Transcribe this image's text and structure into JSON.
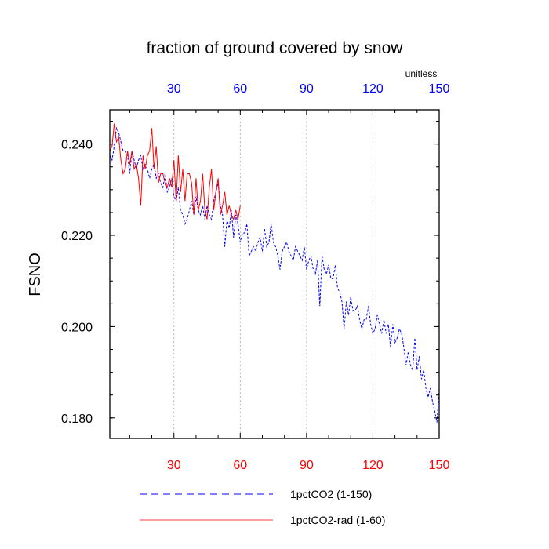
{
  "chart_data": {
    "type": "line",
    "title": "fraction of ground covered by snow",
    "ylabel": "FSNO",
    "units_label": "unitless",
    "xlim": [
      1,
      150
    ],
    "ylim": [
      0.1755,
      0.2475
    ],
    "x_ticks": [
      30,
      60,
      90,
      120,
      150
    ],
    "y_ticks": [
      0.18,
      0.2,
      0.22,
      0.24
    ],
    "y_tick_labels": [
      "0.180",
      "0.200",
      "0.220",
      "0.240"
    ],
    "x_tick_labels": [
      "30",
      "60",
      "90",
      "120",
      "150"
    ],
    "top_axis_color": "#0000ff",
    "bottom_axis_color": "#ff0000",
    "grid": "vertical dashed at x ticks",
    "series": [
      {
        "name": "1pctCO2 (1-150)",
        "color": "#0000ff",
        "style": "dashed",
        "x_start": 1,
        "values": [
          0.2375,
          0.2365,
          0.2395,
          0.2435,
          0.2425,
          0.2405,
          0.2385,
          0.2385,
          0.2375,
          0.2335,
          0.2385,
          0.2365,
          0.2345,
          0.2365,
          0.2375,
          0.2345,
          0.2355,
          0.2345,
          0.2325,
          0.2345,
          0.2355,
          0.2325,
          0.2335,
          0.2315,
          0.2305,
          0.2335,
          0.2295,
          0.2305,
          0.2325,
          0.2285,
          0.2275,
          0.2305,
          0.2255,
          0.2245,
          0.2225,
          0.2235,
          0.2255,
          0.2275,
          0.2245,
          0.2285,
          0.2255,
          0.2245,
          0.2265,
          0.2235,
          0.2265,
          0.2245,
          0.2235,
          0.2275,
          0.2295,
          0.2315,
          0.2265,
          0.2245,
          0.2175,
          0.2235,
          0.2215,
          0.2255,
          0.2195,
          0.2245,
          0.2225,
          0.2185,
          0.2205,
          0.2205,
          0.2225,
          0.2155,
          0.2165,
          0.2175,
          0.2165,
          0.2185,
          0.2195,
          0.2165,
          0.2215,
          0.2175,
          0.2185,
          0.2225,
          0.2185,
          0.2175,
          0.2155,
          0.2125,
          0.2165,
          0.2175,
          0.2185,
          0.2165,
          0.2155,
          0.2145,
          0.2175,
          0.2165,
          0.2155,
          0.2145,
          0.2175,
          0.2125,
          0.2145,
          0.2155,
          0.2125,
          0.2115,
          0.2145,
          0.2045,
          0.2155,
          0.2125,
          0.2115,
          0.2135,
          0.2105,
          0.2105,
          0.2135,
          0.2085,
          0.2075,
          0.2055,
          0.1995,
          0.2055,
          0.2025,
          0.2065,
          0.2035,
          0.2035,
          0.2045,
          0.2015,
          0.1995,
          0.2015,
          0.2015,
          0.2045,
          0.2005,
          0.1985,
          0.1995,
          0.2025,
          0.2005,
          0.1985,
          0.2015,
          0.1985,
          0.2005,
          0.1955,
          0.2005,
          0.1965,
          0.1975,
          0.1995,
          0.1985,
          0.1955,
          0.1915,
          0.1945,
          0.1915,
          0.1905,
          0.1975,
          0.1905,
          0.1935,
          0.1885,
          0.1905,
          0.1865,
          0.1845,
          0.1865,
          0.1835,
          0.1815,
          0.179,
          0.1865
        ]
      },
      {
        "name": "1pctCO2-rad (1-60)",
        "color": "#ff0000",
        "style": "solid",
        "x_start": 1,
        "values": [
          0.2385,
          0.2395,
          0.2445,
          0.2405,
          0.2415,
          0.2365,
          0.2335,
          0.2345,
          0.2385,
          0.2355,
          0.2385,
          0.2345,
          0.2355,
          0.2325,
          0.2265,
          0.2375,
          0.2345,
          0.2375,
          0.2385,
          0.2435,
          0.2345,
          0.2395,
          0.2315,
          0.2335,
          0.2335,
          0.2315,
          0.2305,
          0.2325,
          0.2305,
          0.2365,
          0.2275,
          0.2375,
          0.2295,
          0.2345,
          0.2275,
          0.2335,
          0.2335,
          0.2315,
          0.2245,
          0.2325,
          0.2255,
          0.2275,
          0.2335,
          0.2255,
          0.2235,
          0.2305,
          0.2345,
          0.2255,
          0.2295,
          0.2325,
          0.2245,
          0.2265,
          0.2295,
          0.2245,
          0.2265,
          0.2245,
          0.2235,
          0.2255,
          0.2235,
          0.2265
        ]
      }
    ]
  }
}
